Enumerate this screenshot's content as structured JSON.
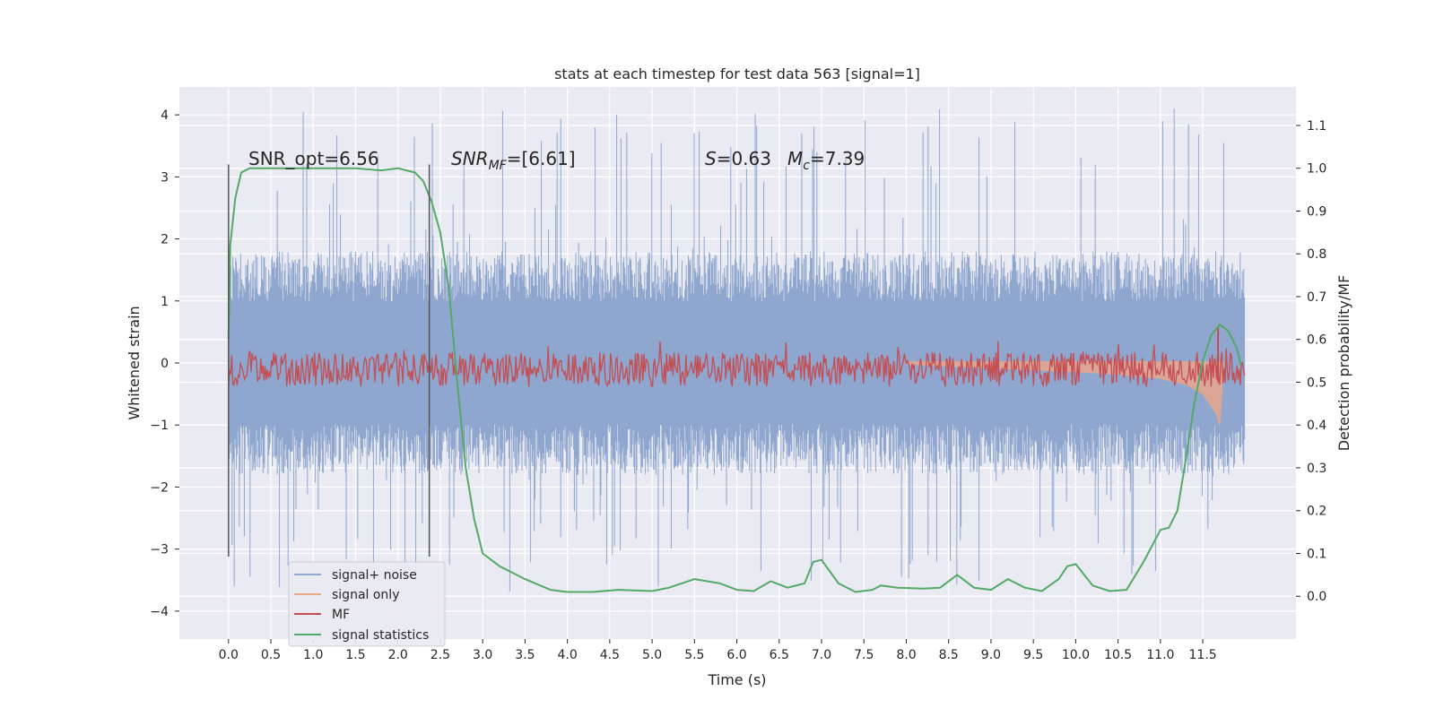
{
  "chart_data": {
    "type": "line",
    "title": "stats at each timestep for test data 563 [signal=1]",
    "xlabel": "Time (s)",
    "ylabel": "Whitened strain",
    "y2label": "Detection probability/MF",
    "xlim": [
      -0.58,
      12.6
    ],
    "ylim": [
      -4.45,
      4.45
    ],
    "y2lim": [
      -0.1,
      1.19
    ],
    "x_ticks": [
      "0.0",
      "0.5",
      "1.0",
      "1.5",
      "2.0",
      "2.5",
      "3.0",
      "3.5",
      "4.0",
      "4.5",
      "5.0",
      "5.5",
      "6.0",
      "6.5",
      "7.0",
      "7.5",
      "8.0",
      "8.5",
      "9.0",
      "9.5",
      "10.0",
      "10.5",
      "11.0",
      "11.5"
    ],
    "y_ticks": [
      "4",
      "3",
      "2",
      "1",
      "0",
      "−1",
      "−2",
      "−3",
      "−4"
    ],
    "y2_ticks": [
      "1.1",
      "1.0",
      "0.9",
      "0.8",
      "0.7",
      "0.6",
      "0.5",
      "0.4",
      "0.3",
      "0.2",
      "0.1",
      "0.0"
    ],
    "grid": true,
    "legend_position": "lower-left",
    "annotations": {
      "snr_opt": "SNR_opt=6.56",
      "snr_mf_main": "SNR",
      "snr_mf_sub": "MF",
      "snr_mf_value": "=[6.61]",
      "s_var": "S",
      "s_value": "=0.63",
      "mc_var": "M",
      "mc_sub": "c",
      "mc_value": "=7.39"
    },
    "vertical_markers": [
      0.0,
      2.37
    ],
    "noise_envelope": {
      "x": [
        0.0,
        12.0
      ],
      "typical_amplitude": 1.8,
      "peak_max": 4.1,
      "trough_min": -3.7
    },
    "series": [
      {
        "name": "signal+ noise",
        "color": "#8fa6cf",
        "axis": "left",
        "style": "dense-noise"
      },
      {
        "name": "signal only",
        "color": "#e9a68b",
        "axis": "left",
        "style": "chirp",
        "x": [
          8.0,
          8.5,
          9.0,
          9.5,
          10.0,
          10.5,
          11.0,
          11.3,
          11.5,
          11.65,
          11.7,
          11.75
        ],
        "amplitude": [
          0.02,
          0.05,
          0.08,
          0.11,
          0.14,
          0.18,
          0.25,
          0.35,
          0.5,
          0.8,
          1.0,
          0.0
        ]
      },
      {
        "name": "MF",
        "color": "#c44e52",
        "axis": "right",
        "style": "noisy-band",
        "center": 0.53,
        "spread": 0.04,
        "peak_x": 11.68,
        "peak_y": 0.63
      },
      {
        "name": "signal statistics",
        "color": "#55a868",
        "axis": "right",
        "x": [
          0.0,
          0.02,
          0.08,
          0.15,
          0.25,
          0.5,
          1.0,
          1.5,
          1.8,
          2.0,
          2.2,
          2.3,
          2.4,
          2.5,
          2.6,
          2.7,
          2.8,
          2.9,
          3.0,
          3.2,
          3.5,
          3.8,
          4.0,
          4.3,
          4.6,
          5.0,
          5.2,
          5.5,
          5.8,
          6.0,
          6.2,
          6.4,
          6.6,
          6.8,
          6.9,
          7.0,
          7.2,
          7.4,
          7.6,
          7.7,
          7.9,
          8.2,
          8.4,
          8.6,
          8.8,
          9.0,
          9.2,
          9.4,
          9.6,
          9.8,
          9.9,
          10.0,
          10.2,
          10.4,
          10.6,
          10.8,
          11.0,
          11.1,
          11.2,
          11.3,
          11.4,
          11.5,
          11.6,
          11.7,
          11.8,
          11.9,
          11.95
        ],
        "y": [
          0.6,
          0.82,
          0.93,
          0.99,
          1.0,
          1.0,
          1.0,
          1.0,
          0.995,
          1.0,
          0.99,
          0.97,
          0.92,
          0.85,
          0.72,
          0.5,
          0.3,
          0.18,
          0.1,
          0.07,
          0.04,
          0.015,
          0.01,
          0.01,
          0.015,
          0.012,
          0.02,
          0.04,
          0.03,
          0.015,
          0.012,
          0.035,
          0.02,
          0.03,
          0.08,
          0.085,
          0.03,
          0.01,
          0.015,
          0.025,
          0.02,
          0.018,
          0.02,
          0.05,
          0.02,
          0.015,
          0.04,
          0.02,
          0.012,
          0.04,
          0.07,
          0.075,
          0.025,
          0.012,
          0.015,
          0.08,
          0.155,
          0.16,
          0.2,
          0.32,
          0.45,
          0.55,
          0.61,
          0.635,
          0.62,
          0.58,
          0.54
        ]
      }
    ]
  }
}
